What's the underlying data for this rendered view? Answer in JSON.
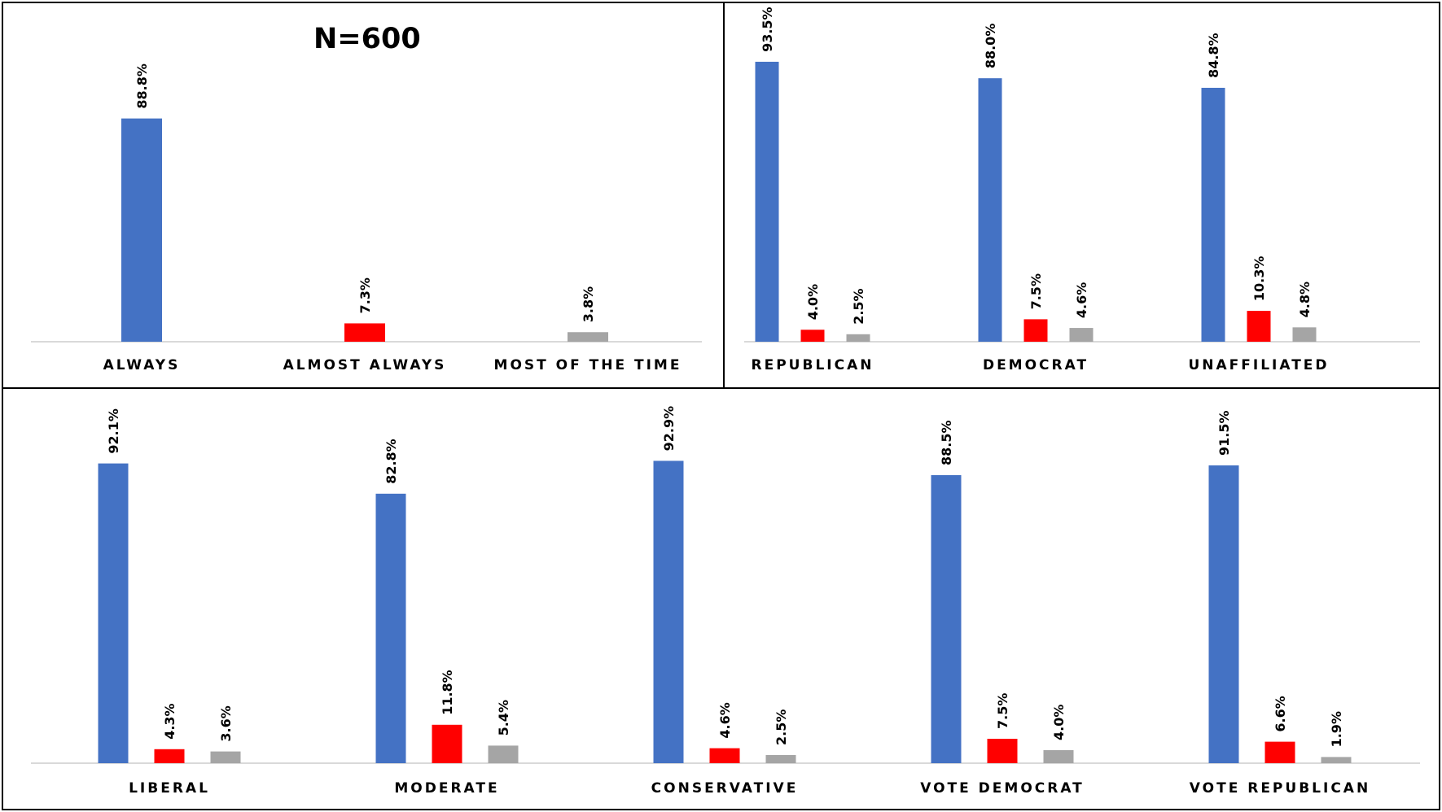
{
  "colors": {
    "series_1": "#4472C4",
    "series_2": "#FF0000",
    "series_3": "#A5A5A5",
    "axis": "#D9D9D9",
    "border": "#000000"
  },
  "chart_data": [
    {
      "type": "bar",
      "title": "N=600",
      "categories": [
        "ALWAYS",
        "ALMOST ALWAYS",
        "MOST OF THE TIME"
      ],
      "values": [
        88.8,
        7.3,
        3.8
      ],
      "value_labels": [
        "88.8%",
        "7.3%",
        "3.8%"
      ],
      "ylim": [
        0,
        100
      ],
      "grid": false,
      "legend": "none"
    },
    {
      "type": "bar",
      "categories": [
        "REPUBLICAN",
        "DEMOCRAT",
        "UNAFFILIATED"
      ],
      "series": [
        {
          "values": [
            93.5,
            88.0,
            84.8
          ],
          "labels": [
            "93.5%",
            "88.0%",
            "84.8%"
          ]
        },
        {
          "values": [
            4.0,
            7.5,
            10.3
          ],
          "labels": [
            "4.0%",
            "7.5%",
            "10.3%"
          ]
        },
        {
          "values": [
            2.5,
            4.6,
            4.8
          ],
          "labels": [
            "2.5%",
            "4.6%",
            "4.8%"
          ]
        }
      ],
      "ylim": [
        0,
        100
      ],
      "grid": false,
      "legend": "none"
    },
    {
      "type": "bar",
      "categories": [
        "LIBERAL",
        "MODERATE",
        "CONSERVATIVE",
        "VOTE DEMOCRAT",
        "VOTE REPUBLICAN"
      ],
      "series": [
        {
          "values": [
            92.1,
            82.8,
            92.9,
            88.5,
            91.5
          ],
          "labels": [
            "92.1%",
            "82.8%",
            "92.9%",
            "88.5%",
            "91.5%"
          ]
        },
        {
          "values": [
            4.3,
            11.8,
            4.6,
            7.5,
            6.6
          ],
          "labels": [
            "4.3%",
            "11.8%",
            "4.6%",
            "7.5%",
            "6.6%"
          ]
        },
        {
          "values": [
            3.6,
            5.4,
            2.5,
            4.0,
            1.9
          ],
          "labels": [
            "3.6%",
            "5.4%",
            "2.5%",
            "4.0%",
            "1.9%"
          ]
        }
      ],
      "ylim": [
        0,
        100
      ],
      "grid": false,
      "legend": "none"
    }
  ]
}
